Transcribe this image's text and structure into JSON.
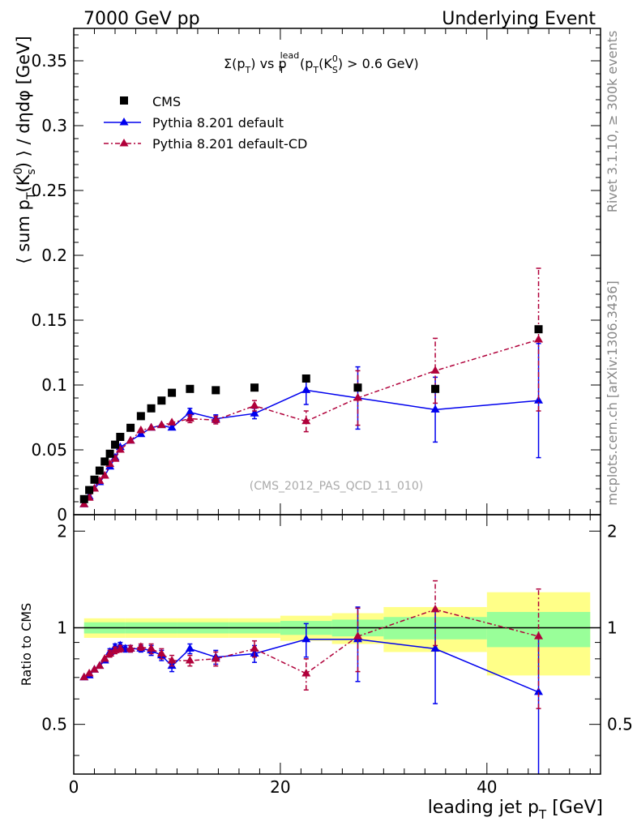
{
  "header": {
    "left": "7000 GeV pp",
    "right": "Underlying Event"
  },
  "side_text": {
    "rivet": "Rivet 3.1.10, ≥ 300k events",
    "mcplots": "mcplots.cern.ch [arXiv:1306.3436]"
  },
  "chart_data": [
    {
      "type": "scatter",
      "panel": "main",
      "title_parts": {
        "sigma": "Σ(p",
        "t1": "T",
        "vs": ") vs p",
        "lead": "lead",
        "t2": "T",
        "cut": " (p",
        "t3": "T",
        "k": "(K",
        "zero": "0",
        "s": "S",
        "rest": ") > 0.6 GeV)"
      },
      "ylabel_parts": {
        "a": "⟨ sum p",
        "t": "T",
        "b": "(K",
        "zero": "0",
        "s": "s",
        "c": ") ⟩ / dηdφ [GeV]"
      },
      "watermark": "(CMS_2012_PAS_QCD_11_010)",
      "xlim": [
        0,
        51
      ],
      "ylim": [
        0,
        0.375
      ],
      "yticks": [
        0,
        0.05,
        0.1,
        0.15,
        0.2,
        0.25,
        0.3,
        0.35
      ],
      "ytick_labels": [
        "0",
        "0.05",
        "0.1",
        "0.15",
        "0.2",
        "0.25",
        "0.3",
        "0.35"
      ],
      "legend_position": "top-left",
      "series": [
        {
          "name": "CMS",
          "style": "square",
          "color": "#000000",
          "x": [
            1.0,
            1.5,
            2.0,
            2.5,
            3.0,
            3.5,
            4.0,
            4.5,
            5.5,
            6.5,
            7.5,
            8.5,
            9.5,
            11.25,
            13.75,
            17.5,
            22.5,
            27.5,
            35.0,
            45.0
          ],
          "y": [
            0.012,
            0.019,
            0.027,
            0.034,
            0.041,
            0.047,
            0.054,
            0.06,
            0.067,
            0.076,
            0.082,
            0.088,
            0.094,
            0.097,
            0.096,
            0.098,
            0.105,
            0.098,
            0.097,
            0.143
          ]
        },
        {
          "name": "Pythia 8.201 default",
          "style": "triangle-solid",
          "color": "#0000ee",
          "x": [
            1.0,
            1.5,
            2.0,
            2.5,
            3.0,
            3.5,
            4.0,
            4.5,
            5.5,
            6.5,
            7.5,
            8.5,
            9.5,
            11.25,
            13.75,
            17.5,
            22.5,
            27.5,
            35.0,
            45.0
          ],
          "y": [
            0.008,
            0.014,
            0.02,
            0.025,
            0.03,
            0.037,
            0.044,
            0.052,
            0.057,
            0.062,
            0.067,
            0.069,
            0.067,
            0.079,
            0.074,
            0.078,
            0.096,
            0.09,
            0.081,
            0.088
          ],
          "err": [
            0.001,
            0.001,
            0.001,
            0.001,
            0.001,
            0.001,
            0.001,
            0.002,
            0.002,
            0.002,
            0.002,
            0.002,
            0.002,
            0.003,
            0.003,
            0.004,
            0.011,
            0.024,
            0.025,
            0.044
          ]
        },
        {
          "name": "Pythia 8.201 default-CD",
          "style": "triangle-dashdot",
          "color": "#b0003a",
          "x": [
            1.0,
            1.5,
            2.0,
            2.5,
            3.0,
            3.5,
            4.0,
            4.5,
            5.5,
            6.5,
            7.5,
            8.5,
            9.5,
            11.25,
            13.75,
            17.5,
            22.5,
            27.5,
            35.0,
            45.0
          ],
          "y": [
            0.008,
            0.013,
            0.02,
            0.026,
            0.03,
            0.039,
            0.043,
            0.05,
            0.057,
            0.065,
            0.067,
            0.069,
            0.071,
            0.074,
            0.073,
            0.084,
            0.072,
            0.09,
            0.111,
            0.135
          ],
          "err": [
            0.001,
            0.001,
            0.001,
            0.001,
            0.001,
            0.001,
            0.001,
            0.002,
            0.002,
            0.002,
            0.002,
            0.002,
            0.002,
            0.003,
            0.003,
            0.004,
            0.008,
            0.021,
            0.025,
            0.055
          ]
        }
      ]
    },
    {
      "type": "scatter",
      "panel": "ratio",
      "ylabel": "Ratio to CMS",
      "xlabel_parts": {
        "a": "leading jet p",
        "t": "T",
        "b": " [GeV]"
      },
      "xlim": [
        0,
        51
      ],
      "ylim": [
        0.35,
        2.25
      ],
      "xticks": [
        0,
        20,
        40
      ],
      "xtick_labels": [
        "0",
        "20",
        "40"
      ],
      "yticks": [
        0.5,
        1,
        2
      ],
      "ytick_labels": [
        "0.5",
        "1",
        "2"
      ],
      "bands": {
        "edges": [
          1,
          5,
          10,
          15,
          20,
          25,
          30,
          40,
          50
        ],
        "stat_lo": [
          0.96,
          0.96,
          0.96,
          0.96,
          0.95,
          0.94,
          0.92,
          0.87,
          0.87
        ],
        "stat_hi": [
          1.04,
          1.04,
          1.04,
          1.04,
          1.05,
          1.06,
          1.08,
          1.12,
          1.12
        ],
        "syst_lo": [
          0.93,
          0.93,
          0.93,
          0.93,
          0.91,
          0.89,
          0.84,
          0.71,
          0.71
        ],
        "syst_hi": [
          1.07,
          1.07,
          1.07,
          1.07,
          1.09,
          1.11,
          1.16,
          1.29,
          1.29
        ],
        "stat_color": "#99ff99",
        "syst_color": "#ffff88"
      },
      "series": [
        {
          "name": "Pythia 8.201 default",
          "color": "#0000ee",
          "x": [
            1.0,
            1.5,
            2.0,
            2.5,
            3.0,
            3.5,
            4.0,
            4.5,
            5.0,
            5.5,
            6.5,
            7.5,
            8.5,
            9.5,
            11.25,
            13.75,
            17.5,
            22.5,
            27.5,
            35.0,
            45.0
          ],
          "y": [
            0.7,
            0.71,
            0.74,
            0.76,
            0.79,
            0.84,
            0.87,
            0.88,
            0.86,
            0.86,
            0.86,
            0.85,
            0.82,
            0.76,
            0.86,
            0.81,
            0.83,
            0.92,
            0.92,
            0.86,
            0.63
          ],
          "err": [
            0.01,
            0.01,
            0.01,
            0.01,
            0.01,
            0.02,
            0.02,
            0.02,
            0.02,
            0.02,
            0.02,
            0.03,
            0.03,
            0.03,
            0.03,
            0.04,
            0.05,
            0.11,
            0.24,
            0.28,
            0.31
          ]
        },
        {
          "name": "Pythia 8.201 default-CD",
          "color": "#b0003a",
          "x": [
            1.0,
            1.5,
            2.0,
            2.5,
            3.0,
            3.5,
            4.0,
            4.5,
            5.5,
            6.5,
            7.5,
            8.5,
            9.5,
            11.25,
            13.75,
            17.5,
            22.5,
            27.5,
            35.0,
            45.0
          ],
          "y": [
            0.7,
            0.72,
            0.74,
            0.76,
            0.8,
            0.83,
            0.85,
            0.86,
            0.86,
            0.87,
            0.86,
            0.83,
            0.79,
            0.79,
            0.8,
            0.86,
            0.72,
            0.94,
            1.14,
            0.94
          ],
          "err": [
            0.01,
            0.01,
            0.01,
            0.01,
            0.01,
            0.02,
            0.02,
            0.02,
            0.02,
            0.02,
            0.03,
            0.03,
            0.03,
            0.03,
            0.04,
            0.05,
            0.08,
            0.21,
            0.26,
            0.38
          ]
        }
      ]
    }
  ]
}
